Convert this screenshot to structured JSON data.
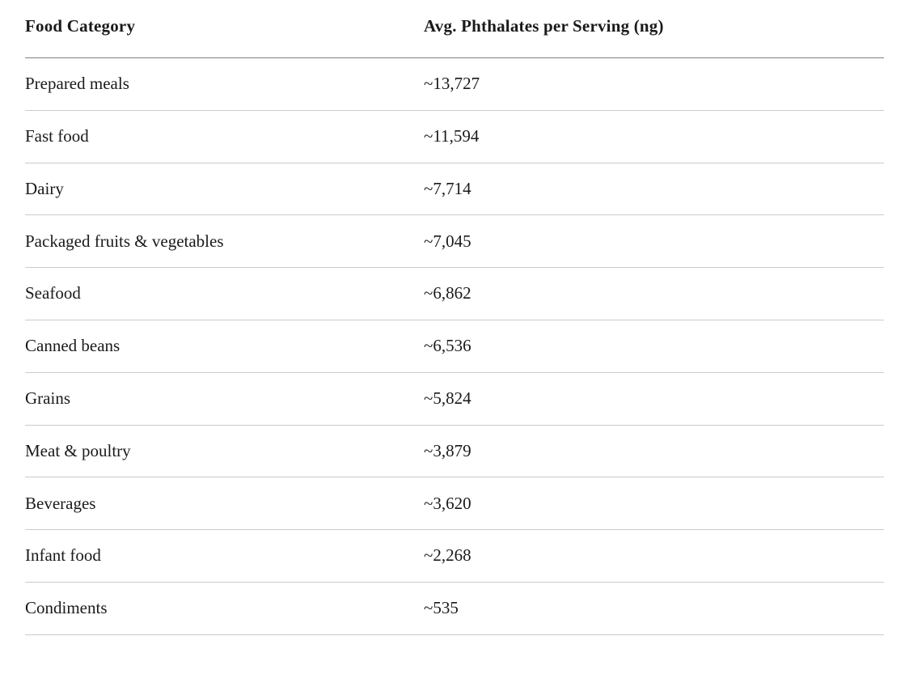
{
  "table": {
    "columns": [
      {
        "label": "Food Category"
      },
      {
        "label": "Avg. Phthalates per Serving (ng)"
      }
    ],
    "rows": [
      {
        "category": "Prepared meals",
        "value": "~13,727"
      },
      {
        "category": "Fast food",
        "value": "~11,594"
      },
      {
        "category": "Dairy",
        "value": "~7,714"
      },
      {
        "category": "Packaged fruits & vegetables",
        "value": "~7,045"
      },
      {
        "category": "Seafood",
        "value": "~6,862"
      },
      {
        "category": "Canned beans",
        "value": "~6,536"
      },
      {
        "category": "Grains",
        "value": "~5,824"
      },
      {
        "category": "Meat & poultry",
        "value": "~3,879"
      },
      {
        "category": "Beverages",
        "value": "~3,620"
      },
      {
        "category": "Infant food",
        "value": "~2,268"
      },
      {
        "category": "Condiments",
        "value": "~535"
      }
    ]
  },
  "colors": {
    "text": "#1a1a1a",
    "header_rule": "#7f7f7f",
    "row_rule": "#cbcbcb",
    "background": "#ffffff"
  },
  "chart_data": {
    "type": "table",
    "title": "",
    "columns": [
      "Food Category",
      "Avg. Phthalates per Serving (ng)"
    ],
    "categories": [
      "Prepared meals",
      "Fast food",
      "Dairy",
      "Packaged fruits & vegetables",
      "Seafood",
      "Canned beans",
      "Grains",
      "Meat & poultry",
      "Beverages",
      "Infant food",
      "Condiments"
    ],
    "values": [
      13727,
      11594,
      7714,
      7045,
      6862,
      6536,
      5824,
      3879,
      3620,
      2268,
      535
    ],
    "value_prefix": "~",
    "value_unit": "ng"
  }
}
